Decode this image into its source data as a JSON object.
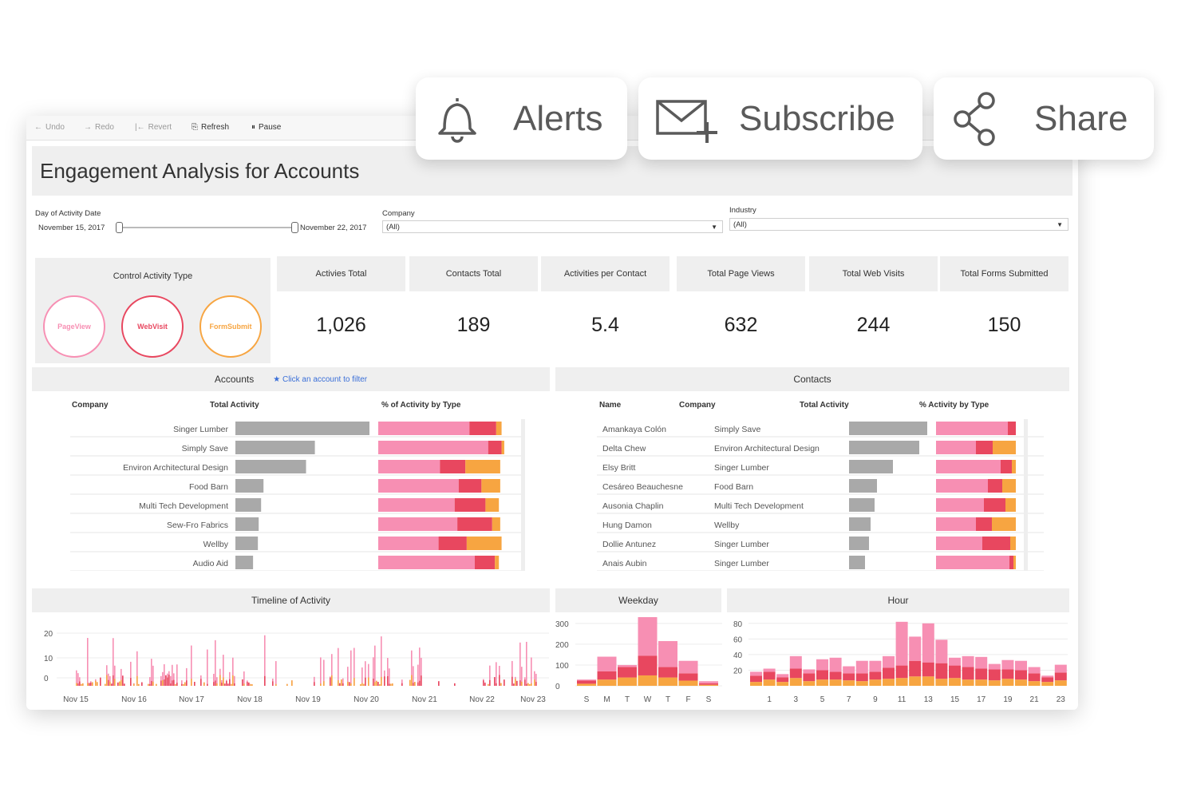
{
  "toolbar": {
    "undo": "Undo",
    "redo": "Redo",
    "revert": "Revert",
    "refresh": "Refresh",
    "pause": "Pause"
  },
  "actions": {
    "alerts": "Alerts",
    "subscribe": "Subscribe",
    "share": "Share"
  },
  "title": "Engagement Analysis for Accounts",
  "filters": {
    "date_label": "Day of Activity Date",
    "date_start": "November 15, 2017",
    "date_end": "November 22, 2017",
    "company_label": "Company",
    "company_value": "(All)",
    "industry_label": "Industry",
    "industry_value": "(All)"
  },
  "control": {
    "title": "Control Activity Type",
    "buttons": [
      "PageView",
      "WebVisit",
      "FormSubmit"
    ]
  },
  "kpis": [
    {
      "label": "Activies Total",
      "value": "1,026"
    },
    {
      "label": "Contacts Total",
      "value": "189"
    },
    {
      "label": "Activities per Contact",
      "value": "5.4"
    },
    {
      "label": "Total Page Views",
      "value": "632"
    },
    {
      "label": "Total Web Visits",
      "value": "244"
    },
    {
      "label": "Total Forms Submitted",
      "value": "150"
    }
  ],
  "colors": {
    "pageview": "#f78fb3",
    "webvisit": "#e8475f",
    "formsubmit": "#f7a541",
    "bar_gray": "#a9a9a9",
    "panel_bg": "#efefef",
    "link_blue": "#3a6fd8"
  },
  "accounts": {
    "title": "Accounts",
    "hint": "Click an account to filter",
    "col_company": "Company",
    "col_total": "Total Activity",
    "col_pct": "% of Activity by Type",
    "rows": [
      {
        "company": "Singer Lumber",
        "total": 167,
        "pct": [
          0.68,
          0.2,
          0.04
        ]
      },
      {
        "company": "Simply Save",
        "total": 99,
        "pct": [
          0.82,
          0.1,
          0.02
        ]
      },
      {
        "company": "Environ Architectural Design",
        "total": 88,
        "pct": [
          0.46,
          0.19,
          0.26
        ]
      },
      {
        "company": "Food Barn",
        "total": 35,
        "pct": [
          0.6,
          0.17,
          0.14
        ]
      },
      {
        "company": "Multi Tech Development",
        "total": 32,
        "pct": [
          0.57,
          0.23,
          0.1
        ]
      },
      {
        "company": "Sew-Fro Fabrics",
        "total": 29,
        "pct": [
          0.59,
          0.26,
          0.06
        ]
      },
      {
        "company": "Wellby",
        "total": 28,
        "pct": [
          0.45,
          0.21,
          0.26
        ]
      },
      {
        "company": "Audio Aid",
        "total": 22,
        "pct": [
          0.72,
          0.15,
          0.03
        ]
      }
    ],
    "x_ticks": [
      "0",
      "50",
      "100",
      "150"
    ],
    "pct_ticks": [
      "0%",
      "50%",
      "100%"
    ]
  },
  "contacts": {
    "title": "Contacts",
    "col_name": "Name",
    "col_company": "Company",
    "col_total": "Total Activity",
    "col_pct": "% Activity by Type",
    "rows": [
      {
        "name": "Amankaya Colón",
        "company": "Simply Save",
        "total": 98,
        "pct": [
          0.9,
          0.1,
          0.0
        ]
      },
      {
        "name": "Delta Chew",
        "company": "Environ Architectural Design",
        "total": 88,
        "pct": [
          0.5,
          0.21,
          0.29
        ]
      },
      {
        "name": "Elsy Britt",
        "company": "Singer Lumber",
        "total": 55,
        "pct": [
          0.81,
          0.14,
          0.05
        ]
      },
      {
        "name": "Cesáreo Beauchesne",
        "company": "Food Barn",
        "total": 35,
        "pct": [
          0.65,
          0.18,
          0.17
        ]
      },
      {
        "name": "Ausonia Chaplin",
        "company": "Multi Tech Development",
        "total": 32,
        "pct": [
          0.6,
          0.27,
          0.13
        ]
      },
      {
        "name": "Hung Damon",
        "company": "Wellby",
        "total": 27,
        "pct": [
          0.5,
          0.2,
          0.3
        ]
      },
      {
        "name": "Dollie Antunez",
        "company": "Singer Lumber",
        "total": 25,
        "pct": [
          0.58,
          0.35,
          0.07
        ]
      },
      {
        "name": "Anais Aubin",
        "company": "Singer Lumber",
        "total": 20,
        "pct": [
          0.92,
          0.05,
          0.03
        ]
      }
    ],
    "x_ticks": [
      "0",
      "50",
      "100"
    ],
    "pct_ticks": [
      "0%",
      "50%",
      "100%"
    ]
  },
  "timeline": {
    "title": "Timeline of Activity",
    "y_ticks": [
      "0",
      "10",
      "20"
    ],
    "x_ticks": [
      "Nov 15",
      "Nov 16",
      "Nov 17",
      "Nov 18",
      "Nov 19",
      "Nov 20",
      "Nov 21",
      "Nov 22",
      "Nov 23"
    ]
  },
  "chart_data": [
    {
      "type": "bar",
      "title": "Weekday",
      "categories": [
        "S",
        "M",
        "T",
        "W",
        "T",
        "F",
        "S"
      ],
      "series": [
        {
          "name": "FormSubmit",
          "values": [
            10,
            30,
            40,
            50,
            40,
            25,
            5
          ]
        },
        {
          "name": "WebVisit",
          "values": [
            15,
            40,
            50,
            95,
            50,
            35,
            7
          ]
        },
        {
          "name": "PageView",
          "values": [
            5,
            70,
            10,
            185,
            125,
            60,
            10
          ]
        }
      ],
      "y_ticks": [
        "0",
        "100",
        "200",
        "300"
      ],
      "ylim": [
        0,
        330
      ]
    },
    {
      "type": "bar",
      "title": "Hour",
      "categories": [
        "0",
        "1",
        "2",
        "3",
        "4",
        "5",
        "6",
        "7",
        "8",
        "9",
        "10",
        "11",
        "12",
        "13",
        "14",
        "15",
        "16",
        "17",
        "18",
        "19",
        "20",
        "21",
        "22",
        "23"
      ],
      "series": [
        {
          "name": "FormSubmit",
          "values": [
            5,
            8,
            5,
            10,
            6,
            8,
            8,
            7,
            6,
            8,
            9,
            10,
            12,
            12,
            9,
            10,
            8,
            8,
            7,
            9,
            8,
            6,
            5,
            7
          ]
        },
        {
          "name": "WebVisit",
          "values": [
            8,
            10,
            6,
            12,
            10,
            12,
            10,
            9,
            10,
            10,
            14,
            16,
            20,
            18,
            20,
            16,
            16,
            14,
            14,
            12,
            12,
            10,
            6,
            10
          ]
        },
        {
          "name": "PageView",
          "values": [
            5,
            4,
            4,
            16,
            5,
            14,
            18,
            9,
            16,
            14,
            15,
            56,
            31,
            50,
            30,
            10,
            14,
            15,
            7,
            12,
            12,
            8,
            2,
            10
          ]
        }
      ],
      "x_tick_labels": [
        "1",
        "3",
        "5",
        "7",
        "9",
        "11",
        "13",
        "15",
        "17",
        "19",
        "21",
        "23"
      ],
      "y_ticks": [
        "20",
        "40",
        "60",
        "80"
      ],
      "ylim": [
        0,
        90
      ]
    }
  ]
}
